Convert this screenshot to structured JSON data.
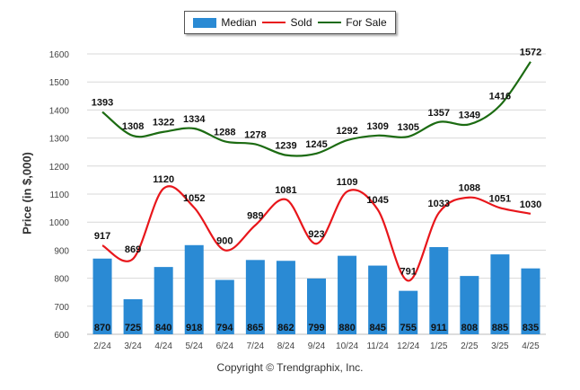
{
  "chart_data": {
    "type": "bar",
    "categories": [
      "2/24",
      "3/24",
      "4/24",
      "5/24",
      "6/24",
      "7/24",
      "8/24",
      "9/24",
      "10/24",
      "11/24",
      "12/24",
      "1/25",
      "2/25",
      "3/25",
      "4/25"
    ],
    "series": [
      {
        "name": "Median",
        "type": "bar",
        "color": "#2a8ad4",
        "values": [
          870,
          725,
          840,
          918,
          794,
          865,
          862,
          799,
          880,
          845,
          755,
          911,
          808,
          885,
          835
        ]
      },
      {
        "name": "Sold",
        "type": "line",
        "color": "#e8161b",
        "values": [
          917,
          869,
          1120,
          1052,
          900,
          989,
          1081,
          923,
          1109,
          1045,
          791,
          1033,
          1088,
          1051,
          1030
        ]
      },
      {
        "name": "For Sale",
        "type": "line",
        "color": "#1c6b12",
        "values": [
          1393,
          1308,
          1322,
          1334,
          1288,
          1278,
          1239,
          1245,
          1292,
          1309,
          1305,
          1357,
          1349,
          1416,
          1572
        ]
      }
    ],
    "ylabel": "Price (in $,000)",
    "ylim": [
      600,
      1600
    ],
    "yticks": [
      600,
      700,
      800,
      900,
      1000,
      1100,
      1200,
      1300,
      1400,
      1500,
      1600
    ],
    "grid": true,
    "legend_position": "top-center"
  },
  "legend": {
    "median": "Median",
    "sold": "Sold",
    "for_sale": "For Sale"
  },
  "footer": {
    "copyright": "Copyright © Trendgraphix, Inc."
  }
}
